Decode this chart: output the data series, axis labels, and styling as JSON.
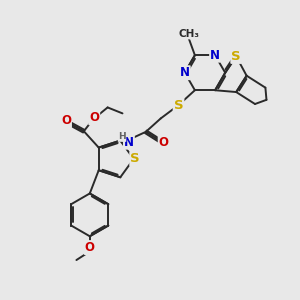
{
  "background_color": "#e8e8e8",
  "bond_color": "#2a2a2a",
  "bond_width": 1.4,
  "atom_colors": {
    "N": "#0000cc",
    "O": "#cc0000",
    "S": "#ccaa00",
    "C": "#2a2a2a",
    "H": "#606060"
  },
  "font_size": 8.5,
  "fig_width": 3.0,
  "fig_height": 3.0,
  "dpi": 100
}
